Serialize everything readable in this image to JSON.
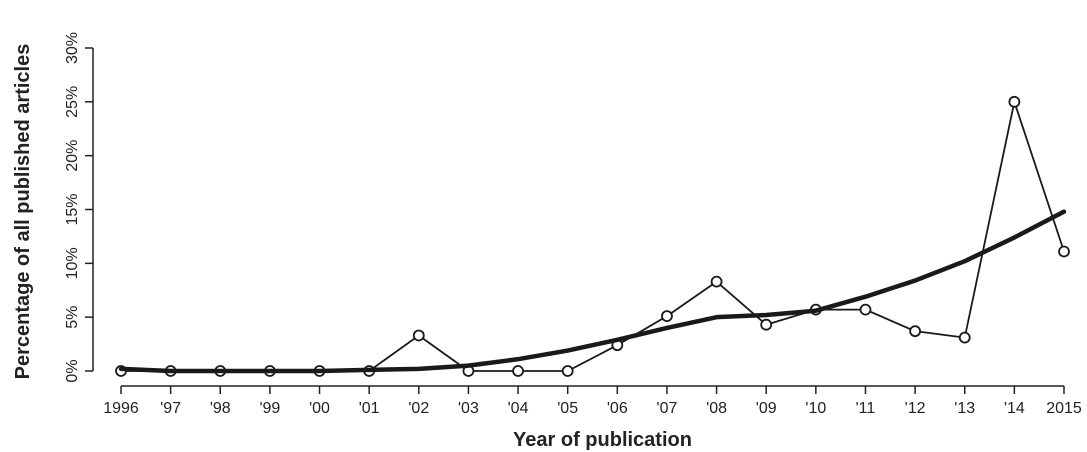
{
  "chart_data": {
    "type": "line",
    "title": "",
    "xlabel": "Year of publication",
    "ylabel": "Percentage of all published articles",
    "x": [
      "1996",
      "'97",
      "'98",
      "'99",
      "'00",
      "'01",
      "'02",
      "'03",
      "'04",
      "'05",
      "'06",
      "'07",
      "'08",
      "'09",
      "'10",
      "'11",
      "'12",
      "'13",
      "'14",
      "2015"
    ],
    "ylim": [
      0,
      30
    ],
    "yticks": [
      "0%",
      "5%",
      "10%",
      "15%",
      "20%",
      "25%",
      "30%"
    ],
    "grid": false,
    "legend": "none",
    "series": [
      {
        "marker": "open-circle",
        "line_weight": "thin",
        "values": [
          0.0,
          0.0,
          0.0,
          0.0,
          0.0,
          0.0,
          3.3,
          0.0,
          0.0,
          0.0,
          2.4,
          5.1,
          8.3,
          4.3,
          5.7,
          5.7,
          3.7,
          3.1,
          25.0,
          11.1
        ]
      },
      {
        "marker": "none",
        "line_weight": "thick",
        "values": [
          0.2,
          0.0,
          0.0,
          0.0,
          0.0,
          0.1,
          0.2,
          0.5,
          1.1,
          1.9,
          2.9,
          4.0,
          5.0,
          5.2,
          5.6,
          6.9,
          8.4,
          10.2,
          12.4,
          14.8
        ]
      }
    ]
  }
}
